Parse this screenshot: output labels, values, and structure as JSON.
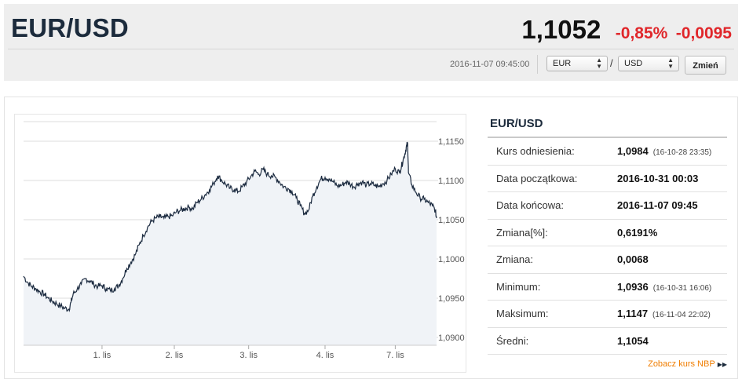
{
  "header": {
    "pair": "EUR/USD",
    "rate": "1,1052",
    "change_percent": "-0,85%",
    "change_abs": "-0,0095",
    "timestamp": "2016-11-07 09:45:00",
    "base_currency": "EUR",
    "slash": "/",
    "quote_currency": "USD",
    "change_button": "Zmień"
  },
  "colors": {
    "negative": "#e0262a",
    "title": "#1c2b3c",
    "link": "#f07d00"
  },
  "info": {
    "title": "EUR/USD",
    "rows": [
      {
        "label": "Kurs odniesienia:",
        "value": "1,0984",
        "note": "(16-10-28 23:35)"
      },
      {
        "label": "Data początkowa:",
        "value": "2016-10-31 00:03",
        "note": ""
      },
      {
        "label": "Data końcowa:",
        "value": "2016-11-07 09:45",
        "note": ""
      },
      {
        "label": "Zmiana[%]:",
        "value": "0,6191%",
        "note": ""
      },
      {
        "label": "Zmiana:",
        "value": "0,0068",
        "note": ""
      },
      {
        "label": "Minimum:",
        "value": "1,0936",
        "note": "(16-10-31 16:06)"
      },
      {
        "label": "Maksimum:",
        "value": "1,1147",
        "note": "(16-11-04 22:02)"
      },
      {
        "label": "Średni:",
        "value": "1,1054",
        "note": ""
      }
    ],
    "nbp_link": "Zobacz kurs NBP",
    "nbp_link_icon": "double-arrow-right-icon"
  },
  "chart_data": {
    "type": "area",
    "y_ticks": [
      "1,1150",
      "1,1100",
      "1,1050",
      "1,1000",
      "1,0950",
      "1,0900"
    ],
    "y_tick_values": [
      1.115,
      1.11,
      1.105,
      1.1,
      1.095,
      1.09
    ],
    "ylim": [
      1.089,
      1.1175
    ],
    "x_ticks": [
      {
        "label": "1. lis",
        "pos": 0.19
      },
      {
        "label": "2. lis",
        "pos": 0.365
      },
      {
        "label": "3. lis",
        "pos": 0.545
      },
      {
        "label": "4. lis",
        "pos": 0.73
      },
      {
        "label": "7. lis",
        "pos": 0.9
      }
    ],
    "series": [
      {
        "values": [
          [
            0.0,
            1.0978
          ],
          [
            0.01,
            1.097
          ],
          [
            0.02,
            1.0965
          ],
          [
            0.03,
            1.0962
          ],
          [
            0.04,
            1.0958
          ],
          [
            0.05,
            1.0955
          ],
          [
            0.06,
            1.095
          ],
          [
            0.07,
            1.0946
          ],
          [
            0.08,
            1.0943
          ],
          [
            0.09,
            1.094
          ],
          [
            0.1,
            1.0937
          ],
          [
            0.11,
            1.0936
          ],
          [
            0.115,
            1.0945
          ],
          [
            0.12,
            1.0955
          ],
          [
            0.13,
            1.0962
          ],
          [
            0.14,
            1.0968
          ],
          [
            0.15,
            1.0975
          ],
          [
            0.16,
            1.0972
          ],
          [
            0.17,
            1.0968
          ],
          [
            0.18,
            1.0965
          ],
          [
            0.19,
            1.0966
          ],
          [
            0.2,
            1.0962
          ],
          [
            0.21,
            1.096
          ],
          [
            0.22,
            1.0962
          ],
          [
            0.23,
            1.0966
          ],
          [
            0.24,
            1.0975
          ],
          [
            0.25,
            1.0988
          ],
          [
            0.26,
            1.0996
          ],
          [
            0.27,
            1.1005
          ],
          [
            0.28,
            1.1018
          ],
          [
            0.29,
            1.103
          ],
          [
            0.3,
            1.104
          ],
          [
            0.31,
            1.1048
          ],
          [
            0.32,
            1.1052
          ],
          [
            0.33,
            1.1054
          ],
          [
            0.34,
            1.1052
          ],
          [
            0.35,
            1.1054
          ],
          [
            0.36,
            1.1055
          ],
          [
            0.37,
            1.106
          ],
          [
            0.38,
            1.1062
          ],
          [
            0.39,
            1.1064
          ],
          [
            0.4,
            1.1066
          ],
          [
            0.41,
            1.1064
          ],
          [
            0.42,
            1.1072
          ],
          [
            0.43,
            1.1076
          ],
          [
            0.44,
            1.1082
          ],
          [
            0.45,
            1.1088
          ],
          [
            0.46,
            1.1096
          ],
          [
            0.47,
            1.1106
          ],
          [
            0.48,
            1.11
          ],
          [
            0.49,
            1.1095
          ],
          [
            0.5,
            1.109
          ],
          [
            0.51,
            1.1088
          ],
          [
            0.52,
            1.1086
          ],
          [
            0.53,
            1.1092
          ],
          [
            0.54,
            1.1098
          ],
          [
            0.55,
            1.1105
          ],
          [
            0.56,
            1.1112
          ],
          [
            0.57,
            1.1108
          ],
          [
            0.58,
            1.1114
          ],
          [
            0.59,
            1.1108
          ],
          [
            0.6,
            1.1106
          ],
          [
            0.61,
            1.1104
          ],
          [
            0.62,
            1.1098
          ],
          [
            0.63,
            1.1092
          ],
          [
            0.64,
            1.109
          ],
          [
            0.65,
            1.1086
          ],
          [
            0.66,
            1.1078
          ],
          [
            0.67,
            1.1068
          ],
          [
            0.68,
            1.1058
          ],
          [
            0.69,
            1.1062
          ],
          [
            0.7,
            1.108
          ],
          [
            0.71,
            1.1092
          ],
          [
            0.72,
            1.1102
          ],
          [
            0.73,
            1.1104
          ],
          [
            0.74,
            1.1102
          ],
          [
            0.75,
            1.1098
          ],
          [
            0.76,
            1.1093
          ],
          [
            0.77,
            1.1094
          ],
          [
            0.78,
            1.1098
          ],
          [
            0.79,
            1.1096
          ],
          [
            0.8,
            1.1092
          ],
          [
            0.81,
            1.1096
          ],
          [
            0.82,
            1.1098
          ],
          [
            0.83,
            1.1094
          ],
          [
            0.84,
            1.1096
          ],
          [
            0.85,
            1.1094
          ],
          [
            0.86,
            1.1092
          ],
          [
            0.87,
            1.1096
          ],
          [
            0.88,
            1.11
          ],
          [
            0.89,
            1.1108
          ],
          [
            0.9,
            1.1115
          ],
          [
            0.91,
            1.111
          ],
          [
            0.915,
            1.1118
          ],
          [
            0.92,
            1.1128
          ],
          [
            0.925,
            1.1138
          ],
          [
            0.928,
            1.1145
          ],
          [
            0.93,
            1.1147
          ],
          [
            0.932,
            1.111
          ],
          [
            0.94,
            1.1095
          ],
          [
            0.95,
            1.1085
          ],
          [
            0.96,
            1.1078
          ],
          [
            0.97,
            1.1076
          ],
          [
            0.98,
            1.1072
          ],
          [
            0.99,
            1.1068
          ],
          [
            0.997,
            1.1062
          ],
          [
            1.0,
            1.1052
          ]
        ]
      }
    ]
  }
}
